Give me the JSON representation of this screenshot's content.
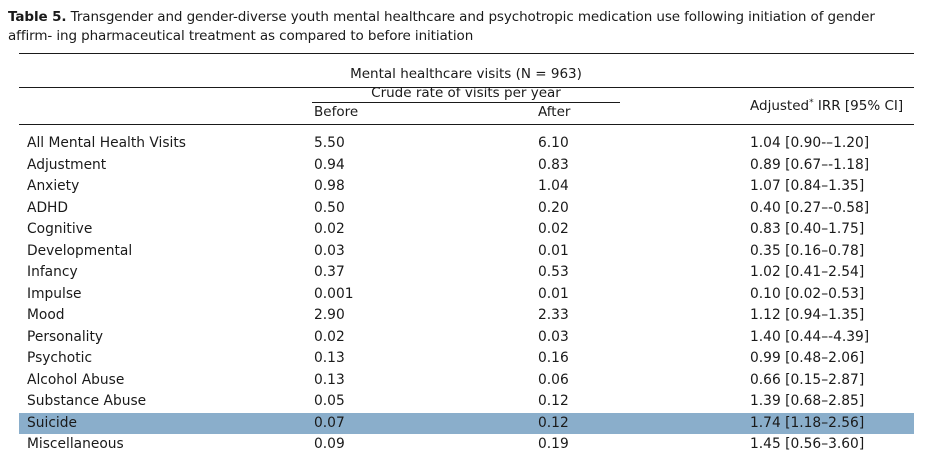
{
  "caption": {
    "label": "Table 5.",
    "text": "Transgender and gender-diverse youth mental healthcare and psychotropic medication use following initiation of gender affirm- ing pharmaceutical treatment as compared to before initiation"
  },
  "header": {
    "group": "Mental healthcare visits (N = 963)",
    "subgroup": "Crude rate of visits per year",
    "before": "Before",
    "after": "After",
    "irr_prefix": "Adjusted",
    "irr_mark": "*",
    "irr_suffix": " IRR [95% CI]"
  },
  "highlight_color": "#8aaecb",
  "rows": [
    {
      "name": "All Mental Health Visits",
      "before": "5.50",
      "after": "6.10",
      "irr": "1.04 [0.90-–1.20]"
    },
    {
      "name": "Adjustment",
      "before": "0.94",
      "after": "0.83",
      "irr": "0.89 [0.67–-1.18]"
    },
    {
      "name": "Anxiety",
      "before": "0.98",
      "after": "1.04",
      "irr": "1.07 [0.84–1.35]"
    },
    {
      "name": "ADHD",
      "before": "0.50",
      "after": "0.20",
      "irr": "0.40 [0.27–-0.58]"
    },
    {
      "name": "Cognitive",
      "before": "0.02",
      "after": "0.02",
      "irr": "0.83 [0.40–1.75]"
    },
    {
      "name": "Developmental",
      "before": "0.03",
      "after": "0.01",
      "irr": "0.35 [0.16–0.78]"
    },
    {
      "name": "Infancy",
      "before": "0.37",
      "after": "0.53",
      "irr": "1.02 [0.41–2.54]"
    },
    {
      "name": "Impulse",
      "before": "0.001",
      "after": "0.01",
      "irr": "0.10 [0.02–0.53]"
    },
    {
      "name": "Mood",
      "before": "2.90",
      "after": "2.33",
      "irr": "1.12 [0.94–1.35]"
    },
    {
      "name": "Personality",
      "before": "0.02",
      "after": "0.03",
      "irr": "1.40 [0.44–-4.39]"
    },
    {
      "name": "Psychotic",
      "before": "0.13",
      "after": "0.16",
      "irr": "0.99 [0.48–2.06]"
    },
    {
      "name": "Alcohol Abuse",
      "before": "0.13",
      "after": "0.06",
      "irr": "0.66 [0.15–2.87]"
    },
    {
      "name": "Substance Abuse",
      "before": "0.05",
      "after": "0.12",
      "irr": "1.39 [0.68–2.85]"
    },
    {
      "name": "Suicide",
      "before": "0.07",
      "after": "0.12",
      "irr": "1.74 [1.18–2.56]",
      "highlighted": true
    },
    {
      "name": "Miscellaneous",
      "before": "0.09",
      "after": "0.19",
      "irr": "1.45 [0.56–3.60]"
    }
  ]
}
